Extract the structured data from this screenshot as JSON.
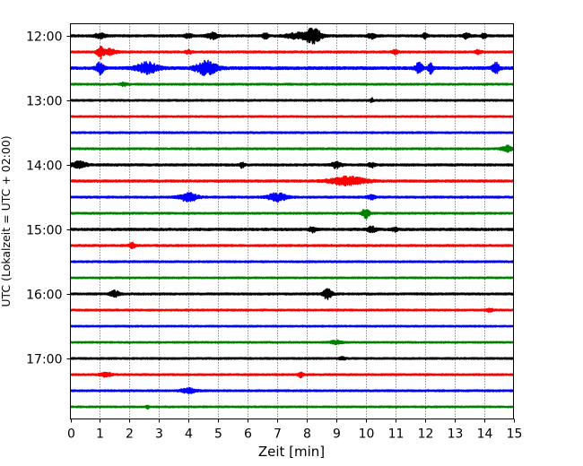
{
  "chart_data": {
    "type": "line",
    "title": "",
    "xlabel": "Zeit  [min]",
    "ylabel": "UTC (Lokalzeit = UTC + 02:00)",
    "xlim": [
      0,
      15
    ],
    "xticks": [
      0,
      1,
      2,
      3,
      4,
      5,
      6,
      7,
      8,
      9,
      10,
      11,
      12,
      13,
      14,
      15
    ],
    "x_grid": "dotted vertical lines at each minute",
    "traces_per_hour": 4,
    "trace_interval_minutes": 15,
    "yticks": [
      "12:00",
      "13:00",
      "14:00",
      "15:00",
      "16:00",
      "17:00"
    ],
    "colors": [
      "#000000",
      "#ff0000",
      "#0000ff",
      "#008000"
    ],
    "series": [
      {
        "start": "12:00",
        "color": "#000000",
        "noise": 1.1,
        "events": [
          [
            1.0,
            2.8,
            0.18
          ],
          [
            4.0,
            2.5,
            0.12
          ],
          [
            4.8,
            3.2,
            0.18
          ],
          [
            6.6,
            2.8,
            0.1
          ],
          [
            7.6,
            3.0,
            0.3
          ],
          [
            8.2,
            8.5,
            0.28
          ],
          [
            10.2,
            3.0,
            0.12
          ],
          [
            12.0,
            2.8,
            0.1
          ],
          [
            13.4,
            3.2,
            0.12
          ],
          [
            14.0,
            2.5,
            0.08
          ]
        ]
      },
      {
        "start": "12:15",
        "color": "#ff0000",
        "noise": 1.0,
        "events": [
          [
            1.0,
            6.5,
            0.1
          ],
          [
            1.3,
            3.0,
            0.25
          ],
          [
            4.0,
            2.0,
            0.1
          ],
          [
            11.0,
            2.2,
            0.1
          ],
          [
            13.8,
            2.2,
            0.1
          ]
        ]
      },
      {
        "start": "12:30",
        "color": "#0000ff",
        "noise": 1.4,
        "events": [
          [
            1.0,
            6.5,
            0.12
          ],
          [
            2.6,
            6.0,
            0.35
          ],
          [
            4.6,
            7.5,
            0.35
          ],
          [
            11.8,
            5.5,
            0.12
          ],
          [
            12.2,
            6.0,
            0.08
          ],
          [
            14.4,
            6.0,
            0.12
          ]
        ]
      },
      {
        "start": "12:45",
        "color": "#008000",
        "noise": 0.9,
        "events": [
          [
            1.8,
            1.8,
            0.1
          ]
        ]
      },
      {
        "start": "13:00",
        "color": "#000000",
        "noise": 0.9,
        "events": [
          [
            10.2,
            2.5,
            0.05
          ]
        ]
      },
      {
        "start": "13:15",
        "color": "#ff0000",
        "noise": 0.8,
        "events": []
      },
      {
        "start": "13:30",
        "color": "#0000ff",
        "noise": 0.9,
        "events": []
      },
      {
        "start": "13:45",
        "color": "#008000",
        "noise": 0.9,
        "events": [
          [
            14.8,
            3.0,
            0.2
          ]
        ]
      },
      {
        "start": "14:00",
        "color": "#000000",
        "noise": 1.1,
        "events": [
          [
            0.3,
            3.5,
            0.25
          ],
          [
            5.8,
            3.0,
            0.08
          ],
          [
            9.0,
            3.5,
            0.15
          ],
          [
            10.2,
            2.6,
            0.1
          ]
        ]
      },
      {
        "start": "14:15",
        "color": "#ff0000",
        "noise": 1.1,
        "events": [
          [
            9.4,
            4.5,
            0.6
          ]
        ]
      },
      {
        "start": "14:30",
        "color": "#0000ff",
        "noise": 1.0,
        "events": [
          [
            4.0,
            4.5,
            0.3
          ],
          [
            7.0,
            4.5,
            0.3
          ],
          [
            10.2,
            2.0,
            0.15
          ]
        ]
      },
      {
        "start": "14:45",
        "color": "#008000",
        "noise": 0.9,
        "events": [
          [
            10.0,
            5.5,
            0.12
          ]
        ]
      },
      {
        "start": "15:00",
        "color": "#000000",
        "noise": 1.2,
        "events": [
          [
            8.2,
            2.8,
            0.1
          ],
          [
            10.2,
            2.8,
            0.15
          ],
          [
            11.0,
            2.0,
            0.1
          ]
        ]
      },
      {
        "start": "15:15",
        "color": "#ff0000",
        "noise": 1.0,
        "events": [
          [
            2.1,
            2.5,
            0.1
          ]
        ]
      },
      {
        "start": "15:30",
        "color": "#0000ff",
        "noise": 0.9,
        "events": []
      },
      {
        "start": "15:45",
        "color": "#008000",
        "noise": 0.8,
        "events": []
      },
      {
        "start": "16:00",
        "color": "#000000",
        "noise": 1.0,
        "events": [
          [
            1.5,
            3.5,
            0.15
          ],
          [
            8.7,
            5.5,
            0.15
          ]
        ]
      },
      {
        "start": "16:15",
        "color": "#ff0000",
        "noise": 0.9,
        "events": [
          [
            14.2,
            1.8,
            0.1
          ]
        ]
      },
      {
        "start": "16:30",
        "color": "#0000ff",
        "noise": 0.8,
        "events": []
      },
      {
        "start": "16:45",
        "color": "#008000",
        "noise": 0.8,
        "events": [
          [
            9.0,
            1.8,
            0.2
          ]
        ]
      },
      {
        "start": "17:00",
        "color": "#000000",
        "noise": 0.9,
        "events": [
          [
            9.2,
            1.5,
            0.1
          ]
        ]
      },
      {
        "start": "17:15",
        "color": "#ff0000",
        "noise": 0.9,
        "events": [
          [
            1.2,
            2.0,
            0.2
          ],
          [
            7.8,
            2.8,
            0.08
          ]
        ]
      },
      {
        "start": "17:30",
        "color": "#0000ff",
        "noise": 0.9,
        "events": [
          [
            4.0,
            2.5,
            0.25
          ]
        ]
      },
      {
        "start": "17:45",
        "color": "#008000",
        "noise": 0.8,
        "events": [
          [
            2.6,
            2.0,
            0.05
          ]
        ]
      }
    ]
  }
}
